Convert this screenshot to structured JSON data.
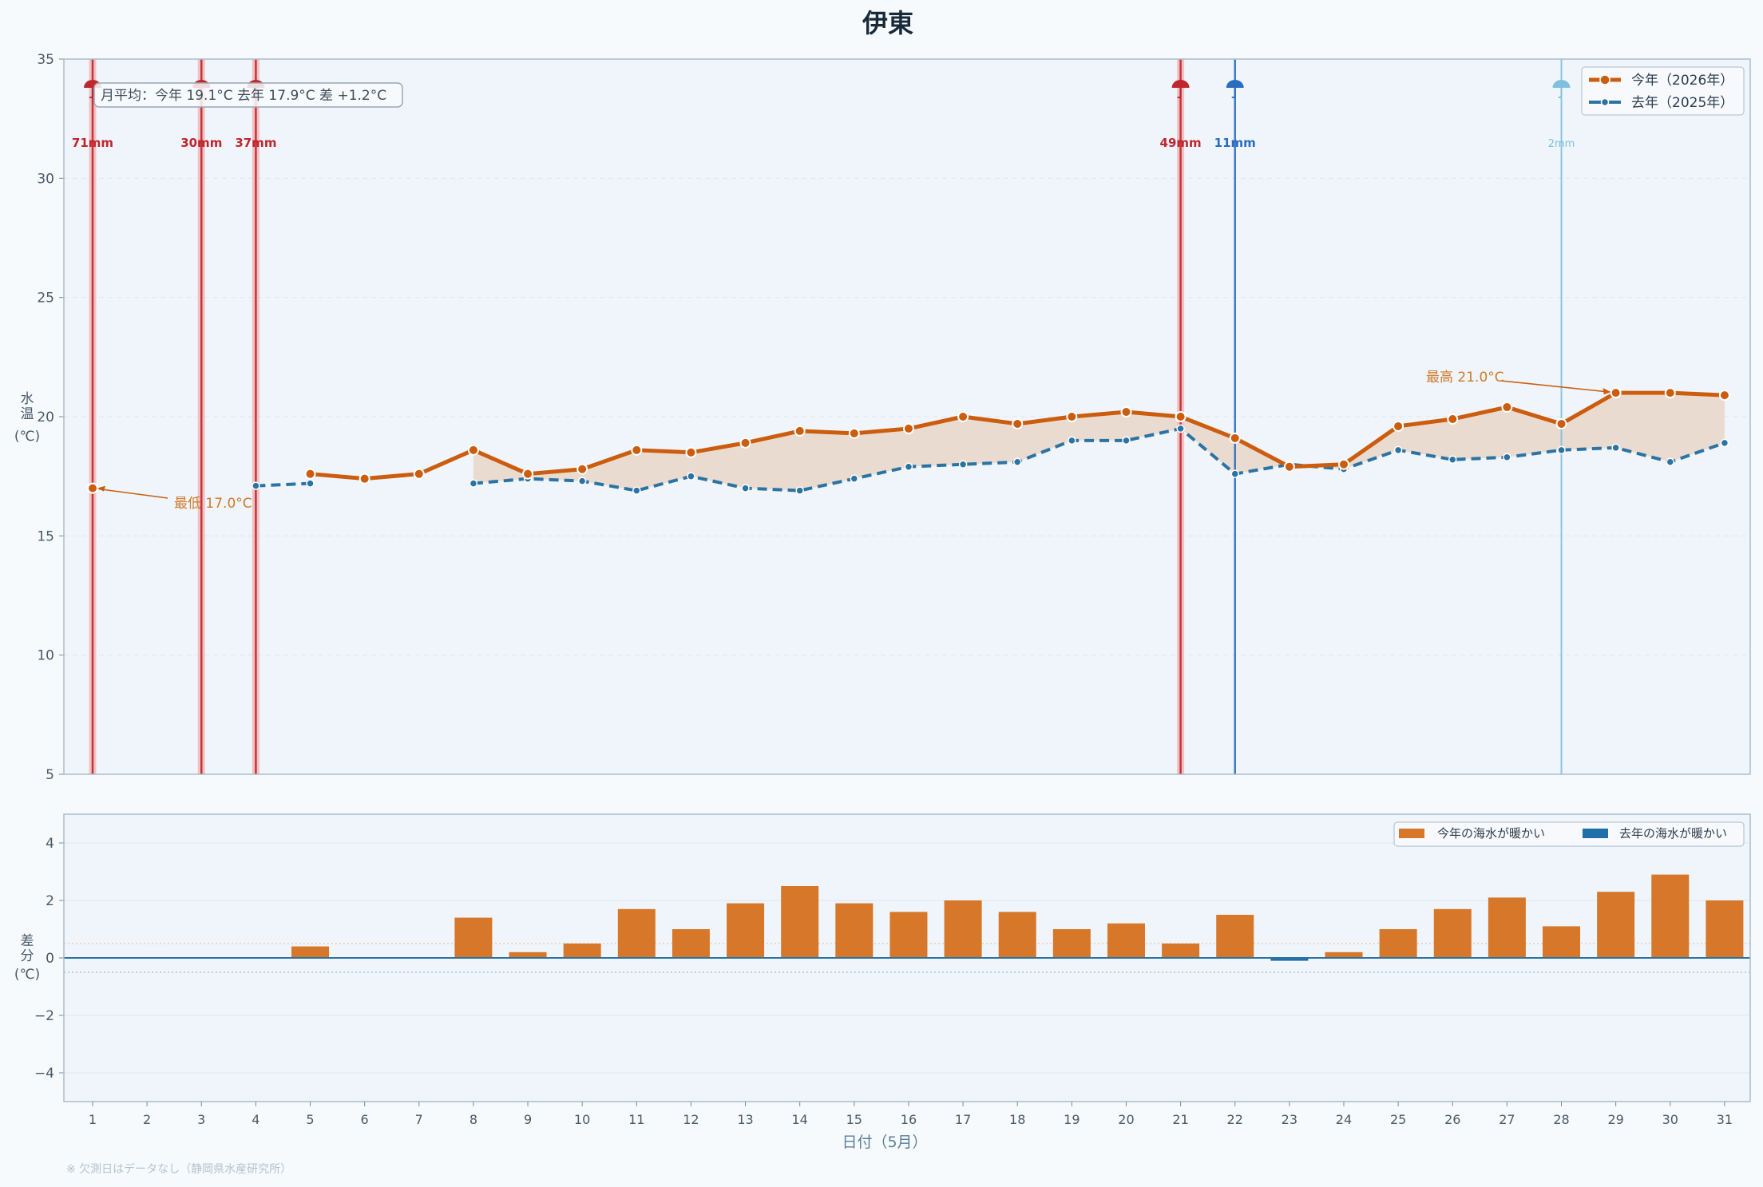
{
  "title": "伊東",
  "footnote": "※ 欠測日はデータなし（静岡県水産研究所）",
  "colors": {
    "current": "#cc5c0e",
    "previous": "#2b73a3",
    "bar_positive": "#d6772a",
    "bar_negative": "#1f6fa8",
    "rain_heavy": "#c0262d",
    "rain_mid": "#2a6dc0",
    "rain_light": "#7fc0de",
    "panel_bg": "#f0f5fb",
    "frame": "#a9bccb"
  },
  "chart_data": [
    {
      "type": "line",
      "ylabel": "水温\n(℃)",
      "ylim": [
        5,
        35
      ],
      "yticks": [
        5,
        10,
        15,
        20,
        25,
        30,
        35
      ],
      "xlim": [
        0.5,
        31.5
      ],
      "x": [
        1,
        2,
        3,
        4,
        5,
        6,
        7,
        8,
        9,
        10,
        11,
        12,
        13,
        14,
        15,
        16,
        17,
        18,
        19,
        20,
        21,
        22,
        23,
        24,
        25,
        26,
        27,
        28,
        29,
        30,
        31
      ],
      "series": [
        {
          "name": "今年（2026年）",
          "values": [
            17.0,
            null,
            null,
            null,
            17.6,
            17.4,
            17.6,
            18.6,
            17.6,
            17.8,
            18.6,
            18.5,
            18.9,
            19.4,
            19.3,
            19.5,
            20.0,
            19.7,
            20.0,
            20.2,
            20.0,
            19.1,
            17.9,
            18.0,
            19.6,
            19.9,
            20.4,
            19.7,
            21.0,
            21.0,
            20.9
          ]
        },
        {
          "name": "去年（2025年）",
          "values": [
            null,
            null,
            null,
            17.1,
            17.2,
            null,
            null,
            17.2,
            17.4,
            17.3,
            16.9,
            17.5,
            17.0,
            16.9,
            17.4,
            17.9,
            18.0,
            18.1,
            19.0,
            19.0,
            19.5,
            17.6,
            18.0,
            17.8,
            18.6,
            18.2,
            18.3,
            18.6,
            18.7,
            18.1,
            18.9
          ]
        }
      ],
      "rain_events": [
        {
          "day": 1,
          "label": "71mm",
          "level": "heavy"
        },
        {
          "day": 3,
          "label": "30mm",
          "level": "heavy"
        },
        {
          "day": 4,
          "label": "37mm",
          "level": "heavy"
        },
        {
          "day": 21,
          "label": "49mm",
          "level": "heavy"
        },
        {
          "day": 22,
          "label": "11mm",
          "level": "mid"
        },
        {
          "day": 28,
          "label": "2mm",
          "level": "light"
        }
      ],
      "monthly_avg_text": "月平均：今年 19.1°C  去年 17.9°C  差 +1.2°C",
      "annotations": [
        {
          "text": "最低 17.0°C",
          "day": 1,
          "value": 17.0
        },
        {
          "text": "最高 21.0°C",
          "day": 29,
          "value": 21.0
        }
      ],
      "legend": {
        "position": "top-right"
      },
      "grid": true
    },
    {
      "type": "bar",
      "ylabel": "差分\n(℃)",
      "ylim": [
        -5,
        5
      ],
      "yticks": [
        -4,
        -2,
        0,
        2,
        4
      ],
      "ytick_labels": [
        "−4",
        "−2",
        "0",
        "2",
        "4"
      ],
      "reference_lines": [
        0.5,
        -0.5
      ],
      "categories": [
        1,
        2,
        3,
        4,
        5,
        6,
        7,
        8,
        9,
        10,
        11,
        12,
        13,
        14,
        15,
        16,
        17,
        18,
        19,
        20,
        21,
        22,
        23,
        24,
        25,
        26,
        27,
        28,
        29,
        30,
        31
      ],
      "values": [
        null,
        null,
        null,
        null,
        0.4,
        null,
        null,
        1.4,
        0.2,
        0.5,
        1.7,
        1.0,
        1.9,
        2.5,
        1.9,
        1.6,
        2.0,
        1.6,
        1.0,
        1.2,
        0.5,
        1.5,
        -0.1,
        0.2,
        1.0,
        1.7,
        2.1,
        1.1,
        2.3,
        2.9,
        2.0
      ],
      "legend": {
        "position": "top-right",
        "entries": [
          "今年の海水が暖かい",
          "去年の海水が暖かい"
        ]
      },
      "xlabel": "日付（5月）",
      "grid": true
    }
  ]
}
